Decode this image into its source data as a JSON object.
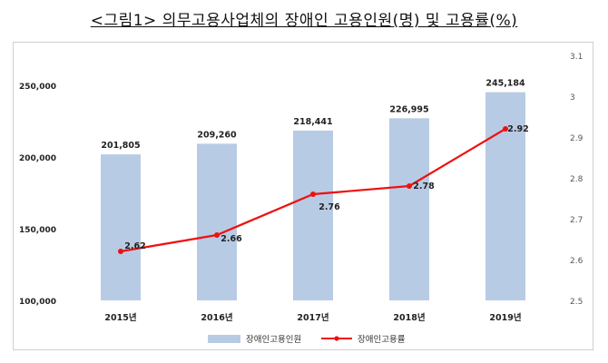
{
  "title": "<그림1> 의무고용사업체의 장애인 고용인원(명) 및 고용률(%)",
  "chart_data": {
    "type": "bar",
    "categories": [
      "2015년",
      "2016년",
      "2017년",
      "2018년",
      "2019년"
    ],
    "series": [
      {
        "name": "장애인고용인원",
        "type": "bar",
        "axis": "left",
        "values": [
          201805,
          209260,
          218441,
          226995,
          245184
        ],
        "labels": [
          "201,805",
          "209,260",
          "218,441",
          "226,995",
          "245,184"
        ],
        "color": "#b8cbe4"
      },
      {
        "name": "장애인고용률",
        "type": "line",
        "axis": "right",
        "values": [
          2.62,
          2.66,
          2.76,
          2.78,
          2.92
        ],
        "labels": [
          "2.62",
          "2.66",
          "2.76",
          "2.78",
          "2.92"
        ],
        "color": "#ee1111"
      }
    ],
    "y_left": {
      "min": 100000,
      "max": 250000,
      "ticks": [
        100000,
        150000,
        200000,
        250000
      ],
      "tick_labels": [
        "100,000",
        "150,000",
        "200,000",
        "250,000"
      ]
    },
    "y_right": {
      "min": 2.5,
      "max": 3.1,
      "ticks": [
        2.5,
        2.6,
        2.7,
        2.8,
        2.9,
        3,
        3.1
      ],
      "tick_labels": [
        "2.5",
        "2.6",
        "2.7",
        "2.8",
        "2.9",
        "3",
        "3.1"
      ]
    },
    "grid": false,
    "legend_position": "bottom"
  }
}
